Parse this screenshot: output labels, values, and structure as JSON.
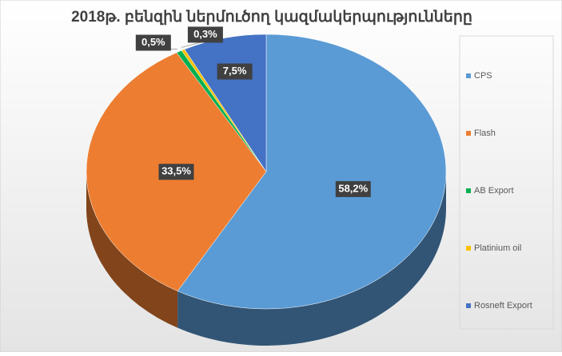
{
  "chart_data": {
    "type": "pie3d",
    "title": "2018թ. բենզին ներմուծող կազմակերպությունները",
    "categories": [
      "CPS",
      "Flash",
      "AB Export",
      "Platinium oil",
      "Rosneft Export"
    ],
    "values": [
      58.2,
      33.5,
      0.5,
      0.3,
      7.5
    ],
    "value_labels": [
      "58,2%",
      "33,5%",
      "0,5%",
      "0,3%",
      "7,5%"
    ],
    "colors": [
      "#5b9bd5",
      "#ed7d31",
      "#00b050",
      "#ffc000",
      "#4472c4"
    ],
    "legend": "right"
  }
}
